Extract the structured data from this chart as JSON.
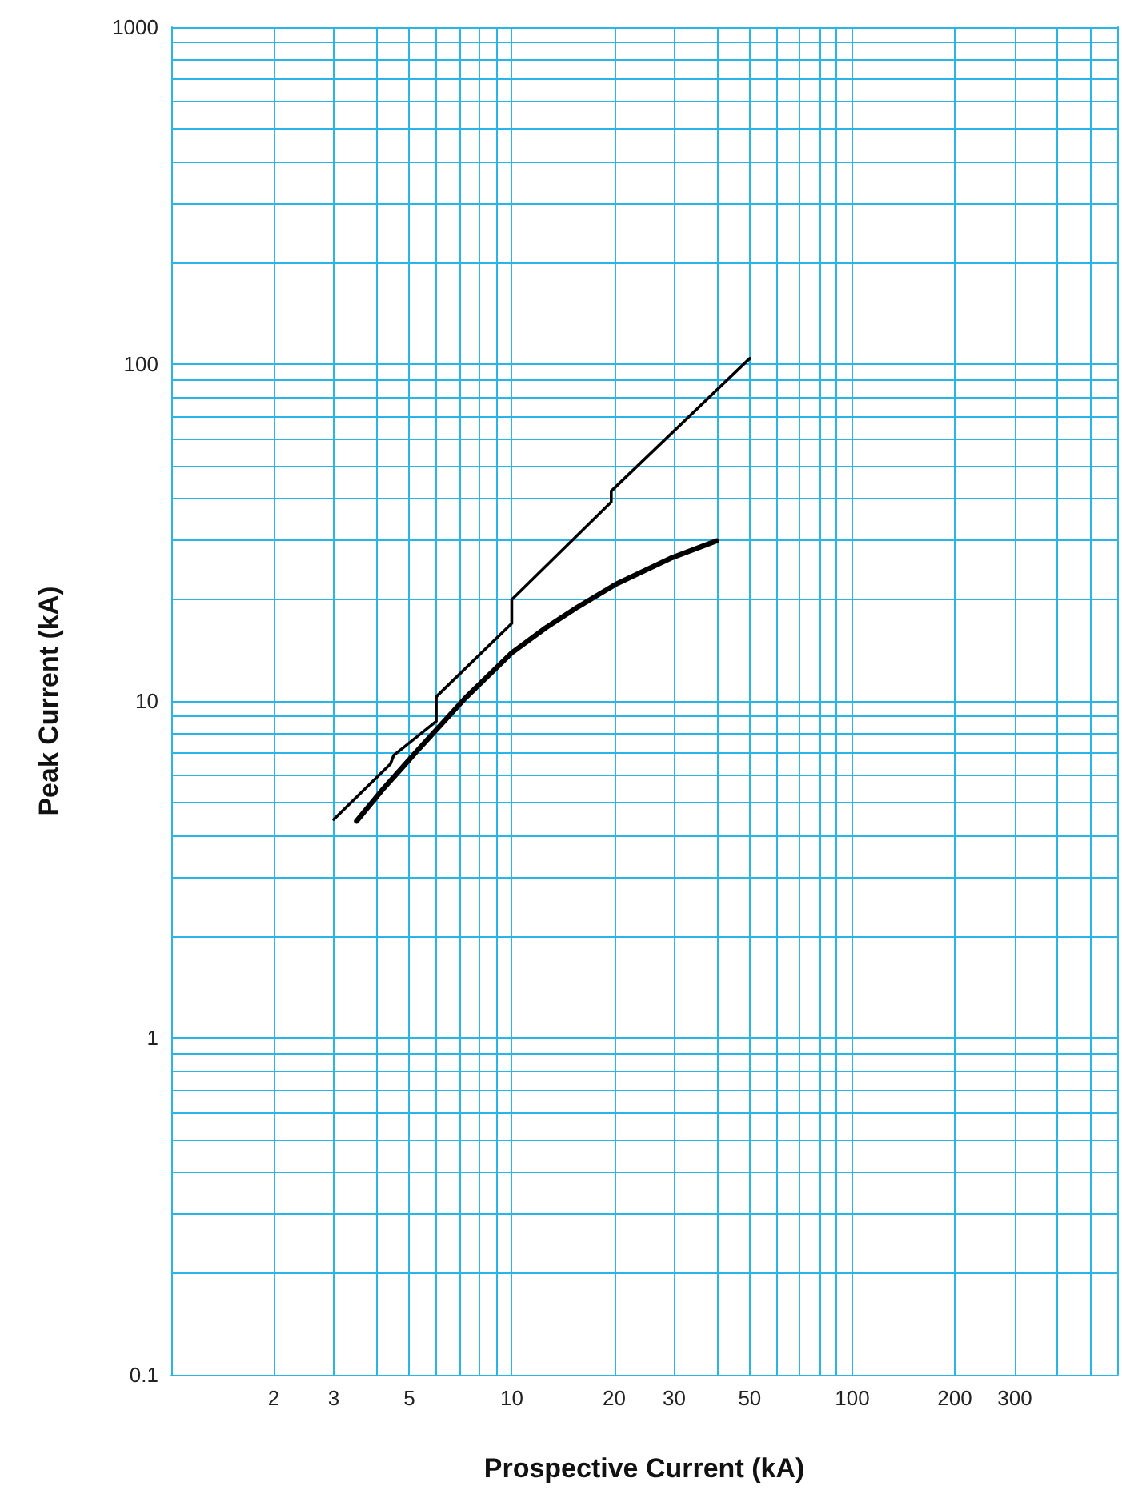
{
  "chart_data": {
    "type": "line",
    "xlabel": "Prospective Current (kA)",
    "ylabel": "Peak Current (kA)",
    "log": "xy",
    "grid": true,
    "marker": "none",
    "line_style": "solid",
    "xlim": [
      1,
      600
    ],
    "xticks": [
      {
        "value": 1,
        "label": null
      },
      2,
      3,
      {
        "value": 4,
        "label": null
      },
      5,
      {
        "value": 6,
        "label": null
      },
      {
        "value": 7,
        "label": null
      },
      {
        "value": 8,
        "label": null
      },
      {
        "value": 9,
        "label": null
      },
      10,
      20,
      30,
      {
        "value": 40,
        "label": null
      },
      50,
      {
        "value": 60,
        "label": null
      },
      {
        "value": 70,
        "label": null
      },
      {
        "value": 80,
        "label": null
      },
      {
        "value": 90,
        "label": null
      },
      100,
      200,
      300,
      {
        "value": 400,
        "label": null
      },
      {
        "value": 500,
        "label": null
      },
      {
        "value": 600,
        "label": null
      }
    ],
    "ylim": [
      0.1,
      1000
    ],
    "yticks": [
      0.1,
      {
        "value": 0.2,
        "label": null
      },
      {
        "value": 0.3,
        "label": null
      },
      {
        "value": 0.4,
        "label": null
      },
      {
        "value": 0.5,
        "label": null
      },
      {
        "value": 0.6,
        "label": null
      },
      {
        "value": 0.7,
        "label": null
      },
      {
        "value": 0.8,
        "label": null
      },
      {
        "value": 0.9,
        "label": null
      },
      1,
      {
        "value": 2,
        "label": null
      },
      {
        "value": 3,
        "label": null
      },
      {
        "value": 4,
        "label": null
      },
      {
        "value": 5,
        "label": null
      },
      {
        "value": 6,
        "label": null
      },
      {
        "value": 7,
        "label": null
      },
      {
        "value": 8,
        "label": null
      },
      {
        "value": 9,
        "label": null
      },
      10,
      {
        "value": 20,
        "label": null
      },
      {
        "value": 30,
        "label": null
      },
      {
        "value": 40,
        "label": null
      },
      {
        "value": 50,
        "label": null
      },
      {
        "value": 60,
        "label": null
      },
      {
        "value": 70,
        "label": null
      },
      {
        "value": 80,
        "label": null
      },
      {
        "value": 90,
        "label": null
      },
      100,
      {
        "value": 200,
        "label": null
      },
      {
        "value": 300,
        "label": null
      },
      {
        "value": 400,
        "label": null
      },
      {
        "value": 500,
        "label": null
      },
      {
        "value": 600,
        "label": null
      },
      {
        "value": 700,
        "label": null
      },
      {
        "value": 800,
        "label": null
      },
      {
        "value": 900,
        "label": null
      },
      1000
    ],
    "series": [
      {
        "color": "#000000",
        "x": [
          3,
          4.4,
          4.5,
          6,
          6,
          10,
          10,
          19.6,
          19.6,
          50
        ],
        "values": [
          4.45,
          6.5,
          6.9,
          8.7,
          10.3,
          17,
          20,
          39,
          42,
          104
        ]
      },
      {
        "color": "#000000",
        "x": [
          3.5,
          4.2,
          5.2,
          7.3,
          10,
          12.6,
          15.6,
          20.2,
          29.2,
          40
        ],
        "values": [
          4.4,
          5.5,
          7,
          10.2,
          13.9,
          16.5,
          19,
          22.2,
          26.5,
          29.9
        ]
      }
    ]
  }
}
